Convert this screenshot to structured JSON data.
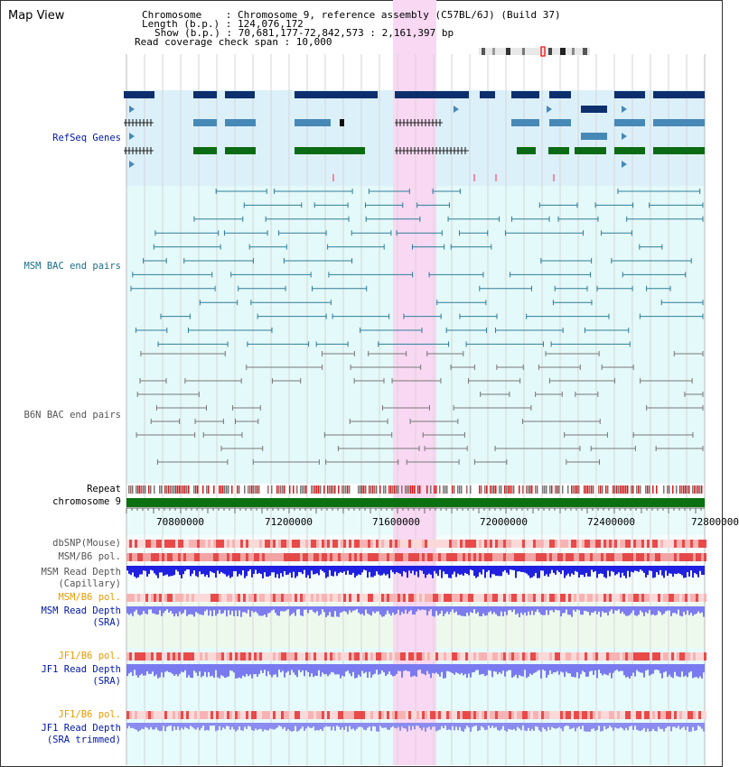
{
  "view_title": "Map View",
  "header": {
    "chromosome_line": "Chromosome    : Chromosome 9, reference assembly (C57BL/6J) (Build 37)",
    "length_line": "Length (b.p.) : 124,076,172",
    "show_line": "Show (b.p.) : 70,681,177-72,842,573 : 2,161,397 bp",
    "span_line": "Read coverage check span : 10,000"
  },
  "tracks": {
    "refseq": "RefSeq Genes",
    "msm_bac": "MSM BAC end pairs",
    "b6n_bac": "B6N BAC end pairs",
    "repeat": "Repeat",
    "chromosome": "chromosome 9",
    "dbsnp": "dbSNP(Mouse)",
    "msm_b6_pol": "MSM/B6 pol.",
    "msm_read_depth_cap_1": "MSM Read Depth",
    "msm_read_depth_cap_2": "(Capillary)",
    "msm_b6_pol_sra": "MSM/B6 pol.",
    "msm_read_depth_sra_1": "MSM Read Depth",
    "msm_read_depth_sra_2": "(SRA)",
    "jf1_b6_pol": "JF1/B6 pol.",
    "jf1_read_depth_1": "JF1 Read Depth",
    "jf1_read_depth_2": "(SRA)",
    "jf1_b6_pol_trim": "JF1/B6 pol.",
    "jf1_read_depth_trim_1": "JF1 Read Depth",
    "jf1_read_depth_trim_2": "(SRA trimmed)"
  },
  "axis_ticks": [
    "70800000",
    "71200000",
    "71600000",
    "72000000",
    "72400000",
    "72800000"
  ],
  "colors": {
    "highlight": "#f9d8f3",
    "refseq_bg": "#dcf0fa",
    "msm_bg": "#e4f9f9",
    "gene_dark": "#0d2f6e",
    "gene_mid": "#4689b7",
    "gene_green": "#0b6b14",
    "msm_pair": "#2e7e9a",
    "b6n_pair": "#777777",
    "chrom": "#0a7010",
    "label_navy": "#0018a8",
    "label_teal": "#1a6e8a",
    "label_gray": "#555555",
    "label_orange": "#e89b00"
  }
}
